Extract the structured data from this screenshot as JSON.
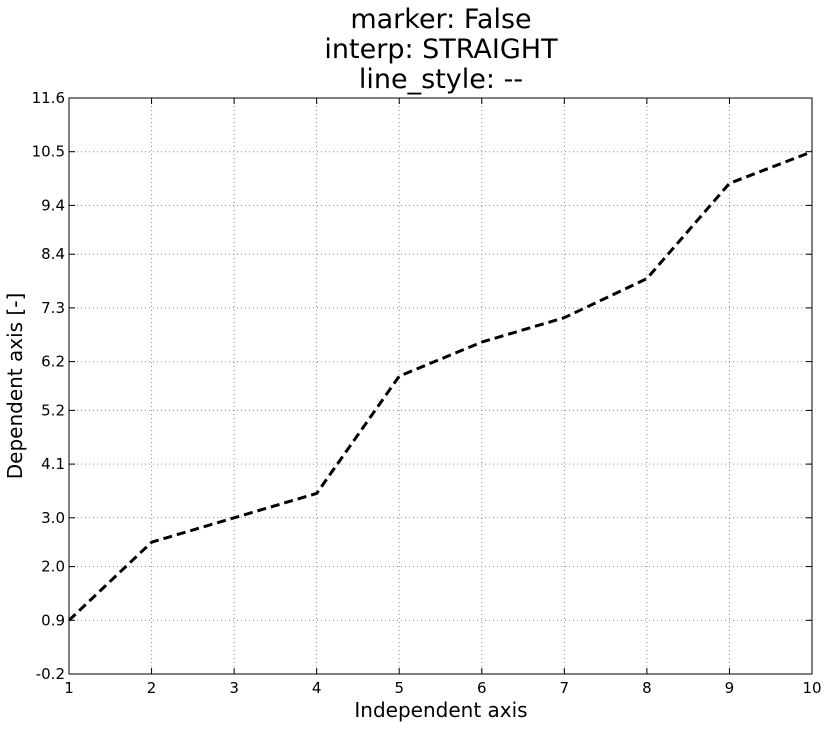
{
  "chart_data": {
    "type": "line",
    "title": [
      "marker: False",
      "interp: STRAIGHT",
      "line_style: --"
    ],
    "xlabel": "Independent axis",
    "ylabel": "Dependent axis [-]",
    "xlim": [
      1,
      10
    ],
    "ylim": [
      -0.2,
      11.6
    ],
    "x_ticks": [
      "1",
      "2",
      "3",
      "4",
      "5",
      "6",
      "7",
      "8",
      "9",
      "10"
    ],
    "y_ticks": [
      "-0.2",
      "0.9",
      "2.0",
      "3.0",
      "4.1",
      "5.2",
      "6.2",
      "7.3",
      "8.4",
      "9.4",
      "10.5",
      "11.6"
    ],
    "grid": true,
    "series": [
      {
        "x": [
          1,
          2,
          3,
          4,
          5,
          6,
          7,
          8,
          9,
          10
        ],
        "y": [
          0.9,
          2.5,
          3.0,
          3.5,
          5.9,
          6.6,
          7.1,
          7.9,
          9.85,
          10.5
        ],
        "color": "#000000",
        "line_style": "dashed",
        "marker": false
      }
    ]
  }
}
